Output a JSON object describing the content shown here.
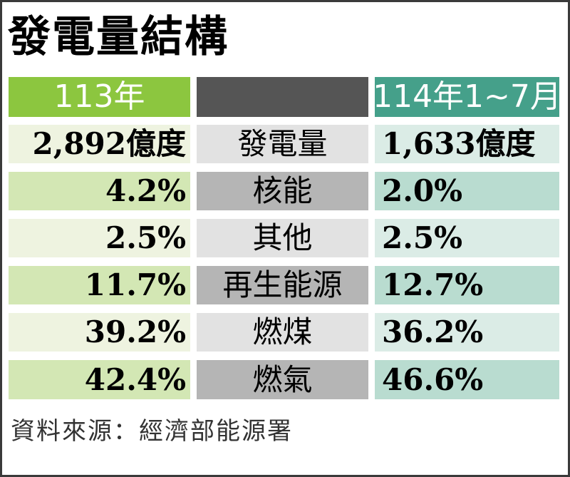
{
  "chart_data": {
    "type": "table",
    "title": "發電量結構",
    "columns": [
      "113年",
      "",
      "114年1~7月"
    ],
    "total_row": {
      "label": "發電量",
      "left": "2,892億度",
      "right": "1,633億度"
    },
    "rows": [
      {
        "label": "核能",
        "left": "4.2%",
        "right": "2.0%"
      },
      {
        "label": "其他",
        "left": "2.5%",
        "right": "2.5%"
      },
      {
        "label": "再生能源",
        "left": "11.7%",
        "right": "12.7%"
      },
      {
        "label": "燃煤",
        "left": "39.2%",
        "right": "36.2%"
      },
      {
        "label": "燃氣",
        "left": "42.4%",
        "right": "46.6%"
      }
    ],
    "source": "資料來源：經濟部能源署"
  },
  "colors": {
    "left_header": "#8cc63f",
    "mid_header": "#555555",
    "right_header": "#45a08a",
    "left_light": "#eef3e0",
    "left_dark": "#d3e7b4",
    "mid_light": "#e2e2e2",
    "mid_dark": "#b5b5b5",
    "right_light": "#dbece6",
    "right_dark": "#b9dcd0"
  }
}
